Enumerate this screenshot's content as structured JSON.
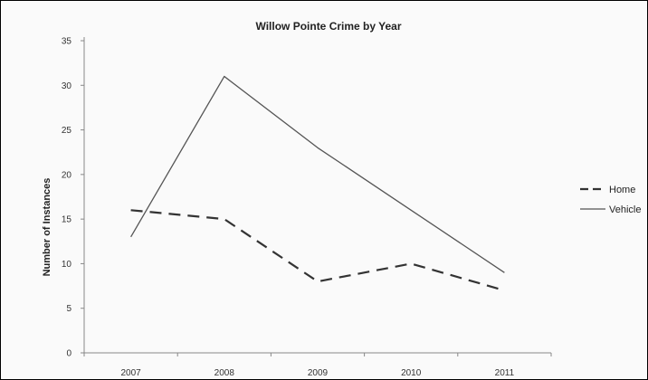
{
  "chart_data": {
    "type": "line",
    "title": "Willow Pointe Crime by Year",
    "xlabel": "",
    "ylabel": "Number of Instances",
    "x": [
      "2007",
      "2008",
      "2009",
      "2010",
      "2011"
    ],
    "ylim": [
      0,
      35
    ],
    "yticks": [
      0,
      5,
      10,
      15,
      20,
      25,
      30,
      35
    ],
    "grid": false,
    "legend_position": "right",
    "series": [
      {
        "name": "Home",
        "style": "dashed",
        "color": "#333333",
        "values": [
          16,
          15,
          8,
          10,
          7
        ]
      },
      {
        "name": "Vehicle",
        "style": "solid",
        "color": "#555555",
        "values": [
          13,
          31,
          23,
          16,
          9
        ]
      }
    ]
  }
}
